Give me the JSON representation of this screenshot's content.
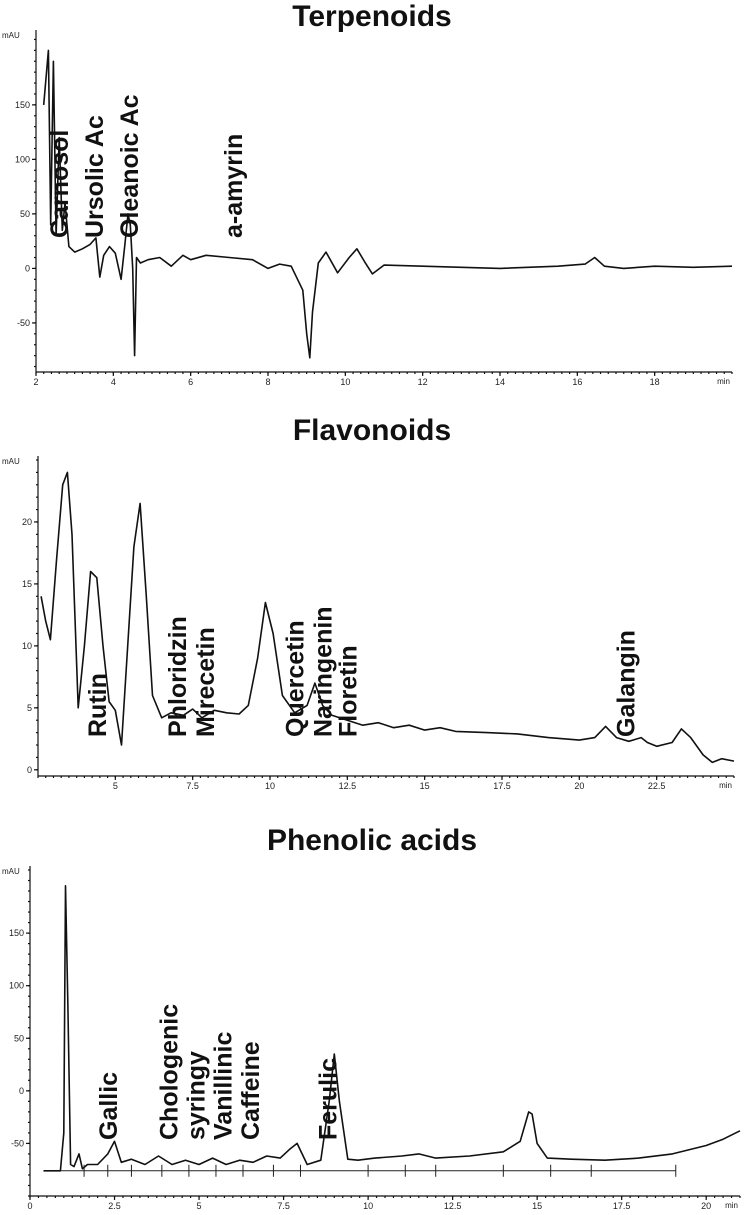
{
  "chart_data": [
    {
      "type": "line",
      "title": "Terpenoids",
      "xlabel": "min",
      "ylabel": "mAU",
      "xlim": [
        2,
        20
      ],
      "ylim": [
        -95,
        215
      ],
      "x_ticks": [
        "2",
        "4",
        "6",
        "8",
        "10",
        "12",
        "14",
        "16",
        "18"
      ],
      "y_ticks": [
        "-50",
        "0",
        "50",
        "100",
        "150"
      ],
      "annotations": [
        {
          "text": "Carnosol",
          "x": 2.6
        },
        {
          "text": "Ursolic Ac",
          "x": 3.5
        },
        {
          "text": "Oleanoic Ac",
          "x": 4.4
        },
        {
          "text": "a-amyrin",
          "x": 7.1
        }
      ],
      "series": [
        {
          "x": [
            2.2,
            2.32,
            2.38,
            2.45,
            2.52,
            2.6,
            2.68,
            2.75,
            2.85,
            3.0,
            3.2,
            3.4,
            3.55,
            3.65,
            3.75,
            3.9,
            4.05,
            4.2,
            4.3,
            4.38,
            4.44,
            4.5,
            4.55,
            4.6,
            4.7,
            4.9,
            5.2,
            5.5,
            5.8,
            6.0,
            6.4,
            7.0,
            7.6,
            8.0,
            8.3,
            8.6,
            8.9,
            9.0,
            9.08,
            9.15,
            9.3,
            9.5,
            9.8,
            10.1,
            10.3,
            10.5,
            10.7,
            11.0,
            12.0,
            14.0,
            15.5,
            16.2,
            16.45,
            16.7,
            17.2,
            18.0,
            19.0,
            20.0
          ],
          "y": [
            150,
            200,
            40,
            190,
            30,
            120,
            35,
            60,
            20,
            15,
            18,
            22,
            28,
            -8,
            12,
            20,
            14,
            -10,
            22,
            50,
            40,
            0,
            -80,
            10,
            5,
            8,
            10,
            2,
            12,
            8,
            12,
            10,
            8,
            0,
            4,
            2,
            -20,
            -60,
            -82,
            -40,
            5,
            15,
            -4,
            10,
            18,
            6,
            -5,
            3,
            2,
            0,
            2,
            4,
            10,
            2,
            0,
            2,
            1,
            2
          ]
        }
      ]
    },
    {
      "type": "line",
      "title": "Flavonoids",
      "xlabel": "min",
      "ylabel": "mAU",
      "xlim": [
        2.5,
        25
      ],
      "ylim": [
        -0.5,
        25
      ],
      "x_ticks": [
        "5",
        "7.5",
        "10",
        "12.5",
        "15",
        "17.5",
        "20",
        "22.5"
      ],
      "y_ticks": [
        "0",
        "5",
        "10",
        "15",
        "20"
      ],
      "annotations": [
        {
          "text": "Rutin",
          "x": 4.4
        },
        {
          "text": "Phloridzin",
          "x": 7.0
        },
        {
          "text": "Mirecetin",
          "x": 7.9
        },
        {
          "text": "Quercetin",
          "x": 10.8
        },
        {
          "text": "Naringenin",
          "x": 11.7
        },
        {
          "text": "Floretin",
          "x": 12.5
        },
        {
          "text": "Galangin",
          "x": 21.5
        }
      ],
      "series": [
        {
          "x": [
            2.6,
            2.75,
            2.9,
            3.1,
            3.3,
            3.45,
            3.6,
            3.8,
            4.0,
            4.2,
            4.4,
            4.6,
            4.8,
            5.0,
            5.2,
            5.4,
            5.6,
            5.8,
            6.0,
            6.2,
            6.5,
            6.8,
            7.2,
            7.5,
            7.8,
            8.2,
            8.6,
            9.0,
            9.3,
            9.6,
            9.85,
            10.1,
            10.4,
            10.8,
            11.2,
            11.45,
            11.7,
            12.0,
            12.5,
            13.0,
            13.5,
            14.0,
            14.5,
            15.0,
            15.5,
            16.0,
            17.0,
            18.0,
            19.0,
            20.0,
            20.5,
            20.85,
            21.2,
            21.6,
            22.0,
            22.2,
            22.5,
            23.0,
            23.3,
            23.6,
            24.0,
            24.3,
            24.6,
            25.0
          ],
          "y": [
            14,
            12,
            10.5,
            17,
            23,
            24,
            19,
            5,
            10,
            16,
            15.5,
            10,
            5.5,
            4.8,
            2,
            10,
            18,
            21.5,
            14,
            6,
            4.2,
            4.6,
            4.4,
            4.9,
            4.2,
            4.8,
            4.6,
            4.5,
            5.2,
            9,
            13.5,
            11,
            6,
            4.6,
            5.2,
            7,
            5.2,
            4.4,
            4.0,
            3.6,
            3.8,
            3.4,
            3.6,
            3.2,
            3.4,
            3.1,
            3.0,
            2.9,
            2.6,
            2.4,
            2.6,
            3.5,
            2.6,
            2.3,
            2.6,
            2.2,
            1.9,
            2.2,
            3.3,
            2.6,
            1.2,
            0.6,
            0.9,
            0.7
          ]
        }
      ]
    },
    {
      "type": "line",
      "title": "Phenolic acids",
      "xlabel": "min",
      "ylabel": "mAU",
      "xlim": [
        0,
        21
      ],
      "ylim": [
        -100,
        210
      ],
      "x_ticks": [
        "0",
        "2.5",
        "5",
        "7.5",
        "10",
        "12.5",
        "15",
        "17.5",
        "20"
      ],
      "y_ticks": [
        "-50",
        "0",
        "50",
        "100",
        "150"
      ],
      "annotations": [
        {
          "text": "Gallic",
          "x": 2.3
        },
        {
          "text": "Chologenic",
          "x": 4.1
        },
        {
          "text": "syringy",
          "x": 4.9
        },
        {
          "text": "Vanillinic",
          "x": 5.7
        },
        {
          "text": "Caffeine",
          "x": 6.5
        },
        {
          "text": "Ferulic",
          "x": 8.8
        }
      ],
      "series": [
        {
          "x": [
            0.4,
            0.9,
            1.0,
            1.05,
            1.12,
            1.2,
            1.3,
            1.45,
            1.55,
            1.7,
            2.0,
            2.3,
            2.5,
            2.7,
            3.0,
            3.4,
            3.8,
            4.2,
            4.6,
            5.0,
            5.4,
            5.8,
            6.2,
            6.6,
            7.0,
            7.4,
            7.7,
            7.9,
            8.2,
            8.6,
            8.85,
            9.0,
            9.15,
            9.4,
            9.7,
            10.2,
            11.0,
            11.5,
            12.0,
            13.0,
            14.0,
            14.5,
            14.75,
            14.85,
            15.0,
            15.3,
            16.0,
            17.0,
            18.0,
            19.0,
            20.0,
            20.5,
            21.0
          ],
          "y": [
            -76,
            -76,
            -40,
            195,
            80,
            -70,
            -72,
            -60,
            -74,
            -70,
            -70,
            -60,
            -48,
            -68,
            -65,
            -70,
            -62,
            -70,
            -66,
            -70,
            -64,
            -70,
            -66,
            -68,
            -62,
            -64,
            -55,
            -50,
            -70,
            -66,
            -10,
            35,
            -10,
            -65,
            -66,
            -64,
            -62,
            -60,
            -64,
            -62,
            -58,
            -48,
            -20,
            -22,
            -50,
            -64,
            -65,
            -66,
            -64,
            -60,
            -52,
            -46,
            -38
          ]
        }
      ]
    }
  ]
}
